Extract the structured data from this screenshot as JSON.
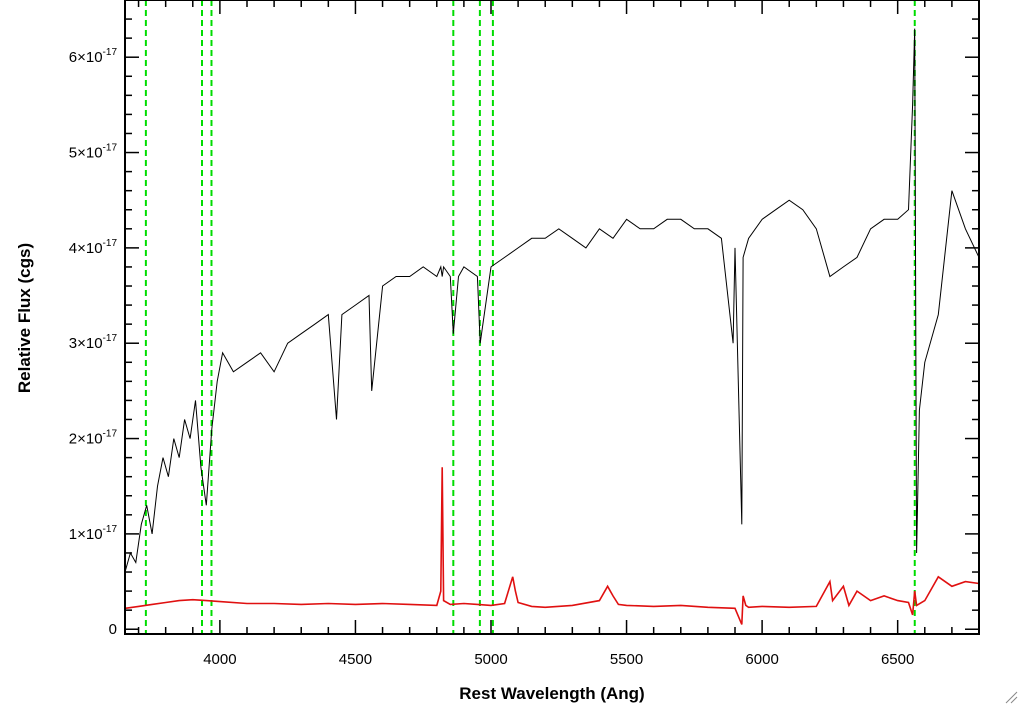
{
  "chart_data": {
    "type": "line",
    "title": "",
    "xlabel": "Rest Wavelength (Ang)",
    "ylabel": "Relative Flux (cgs)",
    "xlim": [
      3650,
      6800
    ],
    "ylim": [
      -5e-19,
      6.6e-17
    ],
    "x_ticks": [
      4000,
      4500,
      5000,
      5500,
      6000,
      6500
    ],
    "x_tick_labels": [
      "4000",
      "4500",
      "5000",
      "5500",
      "6000",
      "6500"
    ],
    "y_ticks": [
      0,
      1e-17,
      2e-17,
      3e-17,
      4e-17,
      5e-17,
      6e-17
    ],
    "y_tick_labels": [
      {
        "mantissa": "0",
        "exponent": ""
      },
      {
        "mantissa": "1×10",
        "exponent": "-17"
      },
      {
        "mantissa": "2×10",
        "exponent": "-17"
      },
      {
        "mantissa": "3×10",
        "exponent": "-17"
      },
      {
        "mantissa": "4×10",
        "exponent": "-17"
      },
      {
        "mantissa": "5×10",
        "exponent": "-17"
      },
      {
        "mantissa": "6×10",
        "exponent": "-17"
      }
    ],
    "grid": false,
    "series": [
      {
        "color": "#000000",
        "style": "solid",
        "x": [
          3650,
          3670,
          3690,
          3710,
          3730,
          3750,
          3770,
          3790,
          3810,
          3830,
          3850,
          3870,
          3890,
          3910,
          3930,
          3950,
          3970,
          3990,
          4010,
          4030,
          4050,
          4100,
          4150,
          4200,
          4250,
          4300,
          4350,
          4400,
          4430,
          4450,
          4500,
          4550,
          4560,
          4600,
          4650,
          4700,
          4750,
          4800,
          4815,
          4820,
          4825,
          4850,
          4861,
          4880,
          4900,
          4950,
          4960,
          5000,
          5050,
          5100,
          5150,
          5200,
          5250,
          5300,
          5350,
          5400,
          5450,
          5500,
          5550,
          5600,
          5650,
          5700,
          5750,
          5800,
          5850,
          5893,
          5900,
          5925,
          5930,
          5950,
          6000,
          6050,
          6100,
          6150,
          6200,
          6250,
          6300,
          6350,
          6400,
          6450,
          6500,
          6540,
          6555,
          6563,
          6570,
          6580,
          6600,
          6650,
          6700,
          6750,
          6800
        ],
        "y": [
          6e-18,
          8e-18,
          7e-18,
          1.1e-17,
          1.3e-17,
          1e-17,
          1.5e-17,
          1.8e-17,
          1.6e-17,
          2e-17,
          1.8e-17,
          2.2e-17,
          2e-17,
          2.4e-17,
          1.7e-17,
          1.3e-17,
          2.1e-17,
          2.6e-17,
          2.9e-17,
          2.8e-17,
          2.7e-17,
          2.8e-17,
          2.9e-17,
          2.7e-17,
          3e-17,
          3.1e-17,
          3.2e-17,
          3.3e-17,
          2.2e-17,
          3.3e-17,
          3.4e-17,
          3.5e-17,
          2.5e-17,
          3.6e-17,
          3.7e-17,
          3.7e-17,
          3.8e-17,
          3.7e-17,
          3.8e-17,
          3.7e-17,
          3.8e-17,
          3.7e-17,
          3.1e-17,
          3.7e-17,
          3.8e-17,
          3.7e-17,
          3e-17,
          3.8e-17,
          3.9e-17,
          4e-17,
          4.1e-17,
          4.1e-17,
          4.2e-17,
          4.1e-17,
          4e-17,
          4.2e-17,
          4.1e-17,
          4.3e-17,
          4.2e-17,
          4.2e-17,
          4.3e-17,
          4.3e-17,
          4.2e-17,
          4.2e-17,
          4.1e-17,
          3e-17,
          4e-17,
          1.1e-17,
          3.9e-17,
          4.1e-17,
          4.3e-17,
          4.4e-17,
          4.5e-17,
          4.4e-17,
          4.2e-17,
          3.7e-17,
          3.8e-17,
          3.9e-17,
          4.2e-17,
          4.3e-17,
          4.3e-17,
          4.4e-17,
          5.5e-17,
          6.3e-17,
          8e-18,
          2.3e-17,
          2.8e-17,
          3.3e-17,
          4.6e-17,
          4.2e-17,
          3.9e-17
        ]
      },
      {
        "color": "#e01010",
        "style": "solid",
        "x": [
          3650,
          3700,
          3750,
          3800,
          3850,
          3900,
          3950,
          4000,
          4100,
          4200,
          4300,
          4400,
          4500,
          4600,
          4700,
          4800,
          4815,
          4820,
          4825,
          4850,
          4900,
          4950,
          5000,
          5050,
          5080,
          5090,
          5100,
          5150,
          5200,
          5300,
          5400,
          5430,
          5450,
          5470,
          5500,
          5600,
          5700,
          5800,
          5900,
          5925,
          5930,
          5940,
          5950,
          6000,
          6100,
          6200,
          6250,
          6260,
          6300,
          6320,
          6350,
          6400,
          6450,
          6500,
          6540,
          6555,
          6563,
          6570,
          6600,
          6650,
          6700,
          6750,
          6800
        ],
        "y": [
          2.2e-18,
          2.4e-18,
          2.6e-18,
          2.8e-18,
          3e-18,
          3.1e-18,
          3e-18,
          2.9e-18,
          2.7e-18,
          2.7e-18,
          2.6e-18,
          2.7e-18,
          2.6e-18,
          2.7e-18,
          2.6e-18,
          2.5e-18,
          4e-18,
          1.7e-17,
          3e-18,
          2.6e-18,
          2.7e-18,
          2.6e-18,
          2.5e-18,
          2.7e-18,
          5.5e-18,
          4e-18,
          2.8e-18,
          2.4e-18,
          2.3e-18,
          2.5e-18,
          3e-18,
          4.5e-18,
          3.5e-18,
          2.6e-18,
          2.5e-18,
          2.4e-18,
          2.5e-18,
          2.3e-18,
          2.2e-18,
          5e-19,
          3.5e-18,
          2.5e-18,
          2.3e-18,
          2.4e-18,
          2.3e-18,
          2.4e-18,
          5e-18,
          3e-18,
          4.5e-18,
          2.5e-18,
          4e-18,
          3e-18,
          3.5e-18,
          3e-18,
          2.8e-18,
          1.5e-18,
          4e-18,
          2.5e-18,
          3e-18,
          5.5e-18,
          4.5e-18,
          5e-18,
          4.8e-18
        ]
      }
    ],
    "vertical_lines": {
      "color": "#00dd00",
      "style": "dashed",
      "x": [
        3727,
        3934,
        3969,
        4861,
        4959,
        5007,
        6563
      ]
    }
  },
  "colors": {
    "axes": "#000000",
    "background": "#ffffff"
  },
  "icons": {
    "corner": "resize-grip-icon"
  }
}
